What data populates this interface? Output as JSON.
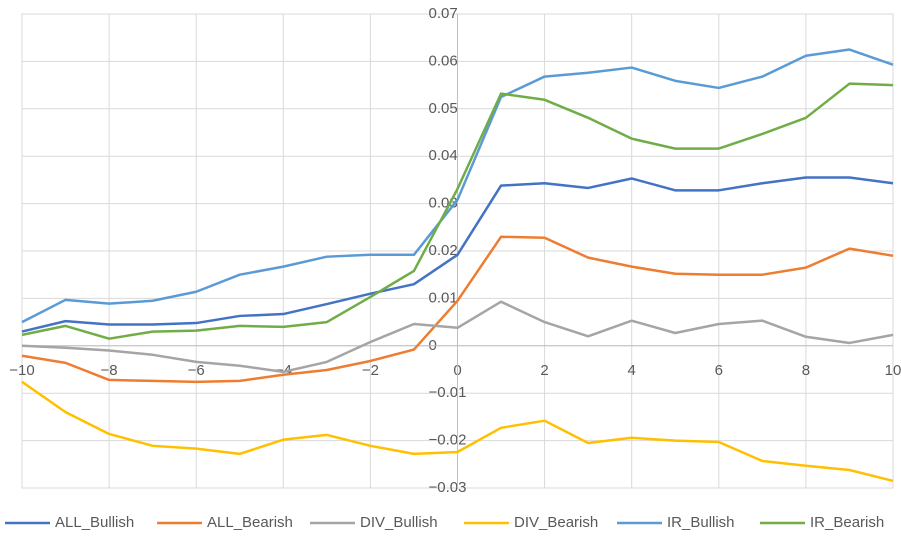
{
  "chart_data": {
    "type": "line",
    "x": [
      -10,
      -9,
      -8,
      -7,
      -6,
      -5,
      -4,
      -3,
      -2,
      -1,
      0,
      1,
      2,
      3,
      4,
      5,
      6,
      7,
      8,
      9,
      10
    ],
    "series": [
      {
        "name": "ALL_Bullish",
        "color": "#4472c4",
        "values": [
          0.003,
          0.0052,
          0.0045,
          0.0045,
          0.0048,
          0.0063,
          0.0067,
          0.0088,
          0.011,
          0.013,
          0.0192,
          0.0338,
          0.0343,
          0.0333,
          0.0353,
          0.0328,
          0.0328,
          0.0343,
          0.0355,
          0.0355,
          0.0343
        ]
      },
      {
        "name": "ALL_Bearish",
        "color": "#ed7d31",
        "values": [
          -0.0021,
          -0.0036,
          -0.0072,
          -0.0074,
          -0.0076,
          -0.0074,
          -0.0061,
          -0.0051,
          -0.0032,
          -0.0008,
          0.0095,
          0.023,
          0.0228,
          0.0186,
          0.0167,
          0.0152,
          0.015,
          0.015,
          0.0165,
          0.0205,
          0.019
        ]
      },
      {
        "name": "DIV_Bullish",
        "color": "#a5a5a5",
        "values": [
          0,
          -0.0004,
          -0.001,
          -0.0019,
          -0.0034,
          -0.0042,
          -0.0055,
          -0.0034,
          0.0008,
          0.0046,
          0.0038,
          0.0093,
          0.005,
          0.002,
          0.0053,
          0.0027,
          0.0046,
          0.0053,
          0.0019,
          0.0006,
          0.0023
        ]
      },
      {
        "name": "DIV_Bearish",
        "color": "#ffc000",
        "values": [
          -0.0076,
          -0.014,
          -0.0186,
          -0.0211,
          -0.0217,
          -0.0228,
          -0.0198,
          -0.0188,
          -0.0211,
          -0.0228,
          -0.0224,
          -0.0173,
          -0.0158,
          -0.0205,
          -0.0194,
          -0.02,
          -0.0203,
          -0.0243,
          -0.0253,
          -0.0262,
          -0.0285
        ]
      },
      {
        "name": "IR_Bullish",
        "color": "#5b9bd5",
        "values": [
          0.005,
          0.0097,
          0.0089,
          0.0095,
          0.0114,
          0.015,
          0.0167,
          0.0188,
          0.0192,
          0.0192,
          0.0308,
          0.0525,
          0.0568,
          0.0576,
          0.0587,
          0.0559,
          0.0544,
          0.0568,
          0.0612,
          0.0625,
          0.0593
        ]
      },
      {
        "name": "IR_Bearish",
        "color": "#70ad47",
        "values": [
          0.0023,
          0.0042,
          0.0015,
          0.003,
          0.0032,
          0.0042,
          0.004,
          0.005,
          0.0103,
          0.0158,
          0.0331,
          0.0532,
          0.0519,
          0.0481,
          0.0437,
          0.0416,
          0.0416,
          0.0447,
          0.0481,
          0.0553,
          0.055
        ]
      }
    ],
    "xlim": [
      -10,
      10
    ],
    "xticks": [
      {
        "value": -10,
        "label": "−10"
      },
      {
        "value": -8,
        "label": "−8"
      },
      {
        "value": -6,
        "label": "−6"
      },
      {
        "value": -4,
        "label": "−4"
      },
      {
        "value": -2,
        "label": "−2"
      },
      0,
      2,
      4,
      6,
      8,
      10
    ],
    "ylim": [
      -0.03,
      0.07
    ],
    "yticks": [
      {
        "value": -0.03,
        "label": "−0.03"
      },
      {
        "value": -0.02,
        "label": "−0.02"
      },
      {
        "value": -0.01,
        "label": "−0.01"
      },
      0,
      0.01,
      0.02,
      0.03,
      0.04,
      0.05,
      0.06,
      0.07
    ],
    "grid": true,
    "legend": "bottom"
  }
}
